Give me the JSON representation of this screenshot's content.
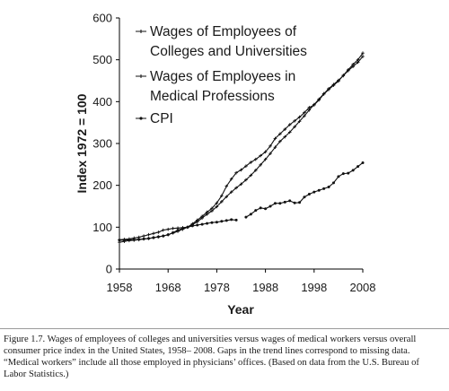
{
  "chart_data": {
    "type": "line",
    "xlabel": "Year",
    "ylabel": "Index 1972 = 100",
    "xlim": [
      1958,
      2008
    ],
    "ylim": [
      0,
      600
    ],
    "xticks": [
      "1958",
      "1968",
      "1978",
      "1988",
      "1998",
      "2008"
    ],
    "yticks": [
      "0",
      "100",
      "200",
      "300",
      "400",
      "500",
      "600"
    ],
    "legend_position": "upper-left",
    "grid": false,
    "series": [
      {
        "name": "Wages of Employees of Colleges and Universities",
        "name_lines": [
          "Wages of Employees of",
          "Colleges and Universities"
        ],
        "marker": "plus",
        "x": [
          1958,
          1959,
          1960,
          1961,
          1962,
          1963,
          1964,
          1965,
          1966,
          1967,
          1968,
          1969,
          1970,
          1971,
          1972,
          1973,
          1974,
          1975,
          1976,
          1977,
          1978,
          1979,
          1980,
          1981,
          1982,
          1983,
          1984,
          1985,
          1986,
          1987,
          1988,
          1989,
          1990,
          1991,
          1992,
          1993,
          1994,
          1995,
          1996,
          1997,
          1998,
          1999,
          2000,
          2001,
          2002,
          2003,
          2004,
          2005,
          2006,
          2007,
          2008
        ],
        "y": [
          64,
          66,
          68,
          69,
          70,
          72,
          73,
          75,
          77,
          79,
          82,
          86,
          90,
          95,
          100,
          106,
          113,
          122,
          131,
          139,
          149,
          161,
          173,
          184,
          194,
          203,
          213,
          224,
          236,
          249,
          262,
          276,
          291,
          305,
          316,
          327,
          340,
          353,
          366,
          380,
          393,
          406,
          419,
          431,
          441,
          451,
          462,
          474,
          484,
          494,
          508
        ]
      },
      {
        "name": "Wages of Employees in Medical Professions",
        "name_lines": [
          "Wages of Employees in",
          "Medical Professions"
        ],
        "marker": "plus",
        "x": [
          1958,
          1959,
          1960,
          1961,
          1962,
          1963,
          1964,
          1965,
          1966,
          1967,
          1968,
          1969,
          1970,
          1971,
          1972,
          1973,
          1974,
          1975,
          1976,
          1977,
          1978,
          1979,
          1980,
          1981,
          1982,
          1983,
          1984,
          1985,
          1986,
          1987,
          1988,
          1989,
          1990,
          1991,
          1992,
          1993,
          1994,
          1995,
          1996,
          1997,
          1998,
          1999,
          2000,
          2001,
          2002,
          2003,
          2004,
          2005,
          2006,
          2007,
          2008
        ],
        "y": [
          70,
          71,
          72,
          74,
          76,
          79,
          82,
          85,
          88,
          93,
          95,
          97,
          98,
          99,
          100,
          108,
          117,
          126,
          136,
          145,
          158,
          175,
          198,
          215,
          230,
          237,
          246,
          255,
          262,
          271,
          280,
          294,
          312,
          323,
          334,
          345,
          354,
          363,
          374,
          386,
          392,
          404,
          418,
          429,
          439,
          449,
          463,
          476,
          489,
          500,
          516
        ]
      },
      {
        "name": "CPI",
        "name_lines": [
          "CPI"
        ],
        "marker": "dot",
        "segments": [
          {
            "x": [
              1958,
              1959,
              1960,
              1961,
              1962,
              1963,
              1964,
              1965,
              1966,
              1967,
              1968,
              1969,
              1970,
              1971,
              1972,
              1973,
              1974,
              1975,
              1976,
              1977,
              1978,
              1979,
              1980,
              1981,
              1982
            ],
            "y": [
              69,
              69,
              70,
              70,
              71,
              72,
              73,
              75,
              77,
              79,
              82,
              87,
              93,
              97,
              100,
              103,
              105,
              107,
              109,
              111,
              112,
              114,
              116,
              118,
              117
            ]
          },
          {
            "x": [
              1984,
              1985,
              1986,
              1987,
              1988,
              1989,
              1990,
              1991,
              1992,
              1993,
              1994,
              1995,
              1996,
              1997,
              1998,
              1999,
              2000,
              2001,
              2002,
              2003,
              2004,
              2005,
              2006,
              2007,
              2008
            ],
            "y": [
              124,
              131,
              140,
              146,
              144,
              150,
              157,
              157,
              160,
              163,
              158,
              159,
              172,
              179,
              184,
              188,
              192,
              196,
              206,
              221,
              228,
              229,
              236,
              245,
              254
            ]
          }
        ]
      }
    ]
  },
  "caption": "Figure 1.7. Wages of employees of colleges and universities versus wages of medical workers versus overall consumer price index in the United States, 1958– 2008. Gaps in the trend lines correspond to missing data. “Medical workers” include all those employed in physicians’ offices. (Based on data from the U.S. Bureau of Labor Statistics.)"
}
